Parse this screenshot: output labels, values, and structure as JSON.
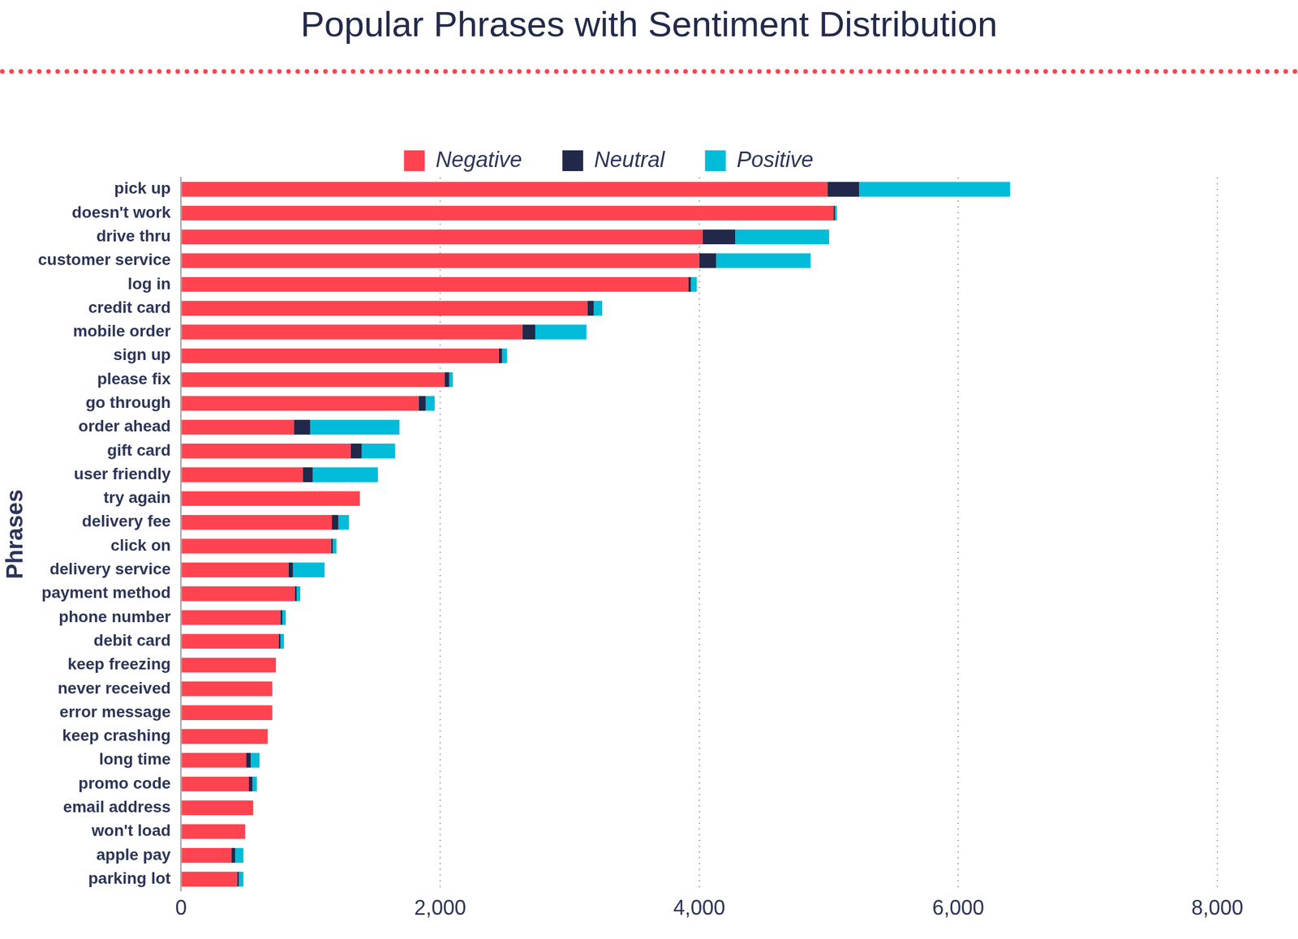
{
  "chart_data": {
    "type": "bar",
    "orientation": "horizontal",
    "stacked": true,
    "grid": true,
    "legend": "top",
    "title": "Popular Phrases with Sentiment Distribution",
    "y_label": "Phrases",
    "categories": [
      "pick up",
      "doesn't work",
      "drive thru",
      "customer service",
      "log in",
      "credit card",
      "mobile order",
      "sign up",
      "please fix",
      "go through",
      "order ahead",
      "gift card",
      "user friendly",
      "try again",
      "delivery fee",
      "click on",
      "delivery service",
      "payment method",
      "phone number",
      "debit card",
      "keep freezing",
      "never received",
      "error message",
      "keep crashing",
      "long time",
      "promo code",
      "email address",
      "won't load",
      "apple pay",
      "parking lot"
    ],
    "series": [
      {
        "name": "Negative",
        "color": "#ff4350",
        "values": [
          4990,
          5038,
          4028,
          4000,
          3916,
          3136,
          2634,
          2453,
          2035,
          1833,
          871,
          1310,
          941,
          1380,
          1164,
          1157,
          829,
          878,
          767,
          753,
          732,
          704,
          704,
          669,
          502,
          523,
          557,
          495,
          390,
          432
        ]
      },
      {
        "name": "Neutral",
        "color": "#212849",
        "values": [
          245,
          10,
          250,
          130,
          20,
          50,
          100,
          25,
          35,
          55,
          126,
          84,
          75,
          0,
          50,
          14,
          35,
          14,
          14,
          14,
          0,
          0,
          0,
          0,
          35,
          28,
          0,
          0,
          28,
          14
        ]
      },
      {
        "name": "Positive",
        "color": "#00bcd9",
        "values": [
          1165,
          15,
          725,
          730,
          45,
          65,
          395,
          38,
          28,
          70,
          689,
          258,
          503,
          0,
          82,
          28,
          244,
          28,
          27,
          27,
          0,
          0,
          0,
          0,
          69,
          34,
          0,
          0,
          63,
          35
        ]
      }
    ],
    "xlim": [
      0,
      8000
    ],
    "xticks": [
      0,
      {
        "value": 2000,
        "label": "2,000"
      },
      {
        "value": 4000,
        "label": "4,000"
      },
      {
        "value": 6000,
        "label": "6,000"
      },
      {
        "value": 8000,
        "label": "8,000"
      }
    ]
  }
}
